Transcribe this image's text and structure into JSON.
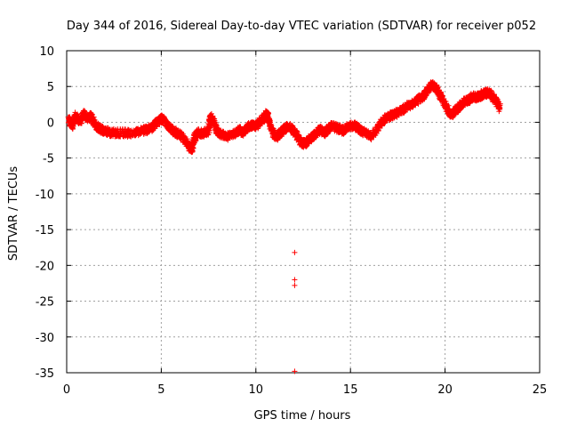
{
  "chart_data": {
    "type": "scatter",
    "title": "Day 344 of 2016, Sidereal Day-to-day VTEC variation (SDTVAR) for receiver p052",
    "xlabel": "GPS time / hours",
    "ylabel": "SDTVAR / TECUs",
    "xlim": [
      0,
      25
    ],
    "ylim": [
      -35,
      10
    ],
    "xticks": [
      0,
      5,
      10,
      15,
      20,
      25
    ],
    "yticks": [
      10,
      5,
      0,
      -5,
      -10,
      -15,
      -20,
      -25,
      -30,
      -35
    ],
    "grid": true,
    "marker": "+",
    "color": "#ff0000",
    "series": [
      {
        "name": "SDTVAR",
        "x": [
          0.1,
          0.3,
          0.5,
          0.7,
          0.9,
          1.1,
          1.3,
          1.5,
          1.8,
          2.1,
          2.5,
          3.0,
          3.5,
          4.0,
          4.3,
          4.6,
          4.9,
          5.0,
          5.2,
          5.5,
          5.8,
          6.1,
          6.4,
          6.6,
          6.7,
          6.9,
          7.2,
          7.5,
          7.6,
          7.8,
          8.0,
          8.3,
          8.6,
          8.9,
          9.1,
          9.3,
          9.5,
          9.7,
          9.9,
          10.1,
          10.3,
          10.5,
          10.6,
          10.7,
          10.9,
          11.1,
          11.3,
          11.5,
          11.7,
          12.0,
          12.2,
          12.4,
          12.6,
          12.8,
          13.0,
          13.2,
          13.4,
          13.6,
          13.8,
          14.0,
          14.3,
          14.6,
          14.9,
          15.2,
          15.5,
          15.8,
          16.1,
          16.4,
          16.7,
          17.0,
          17.3,
          17.6,
          17.9,
          18.2,
          18.5,
          18.8,
          19.1,
          19.3,
          19.5,
          19.7,
          19.9,
          20.1,
          20.3,
          20.5,
          20.7,
          20.9,
          21.1,
          21.3,
          21.5,
          21.7,
          21.9,
          22.1,
          22.3,
          22.5,
          22.7,
          22.9,
          12.05,
          12.05,
          12.05,
          12.05
        ],
        "y": [
          0.5,
          -0.5,
          1.0,
          0.0,
          1.2,
          0.5,
          0.8,
          -0.5,
          -1.0,
          -1.3,
          -1.5,
          -1.5,
          -1.6,
          -1.2,
          -1.0,
          -0.6,
          0.3,
          0.5,
          0.0,
          -1.0,
          -1.5,
          -2.0,
          -3.0,
          -4.0,
          -2.5,
          -1.5,
          -1.5,
          -1.2,
          0.8,
          0.0,
          -1.5,
          -1.8,
          -2.0,
          -1.5,
          -1.0,
          -1.5,
          -1.0,
          -0.5,
          -0.5,
          -0.3,
          0.3,
          0.8,
          1.2,
          0.0,
          -1.5,
          -2.0,
          -1.5,
          -1.0,
          -0.5,
          -1.2,
          -2.0,
          -2.8,
          -3.0,
          -2.5,
          -2.0,
          -1.5,
          -1.0,
          -1.5,
          -1.0,
          -0.5,
          -0.8,
          -1.2,
          -0.5,
          -0.5,
          -1.0,
          -1.5,
          -2.0,
          -1.0,
          0.2,
          0.8,
          1.0,
          1.5,
          2.0,
          2.5,
          3.0,
          3.5,
          4.5,
          5.2,
          4.8,
          4.0,
          3.0,
          2.0,
          1.0,
          1.5,
          2.0,
          2.5,
          3.0,
          3.2,
          3.6,
          3.5,
          3.8,
          4.0,
          4.2,
          3.5,
          3.0,
          2.0,
          -18.2,
          -22.0,
          -22.8,
          -34.8
        ]
      }
    ]
  }
}
